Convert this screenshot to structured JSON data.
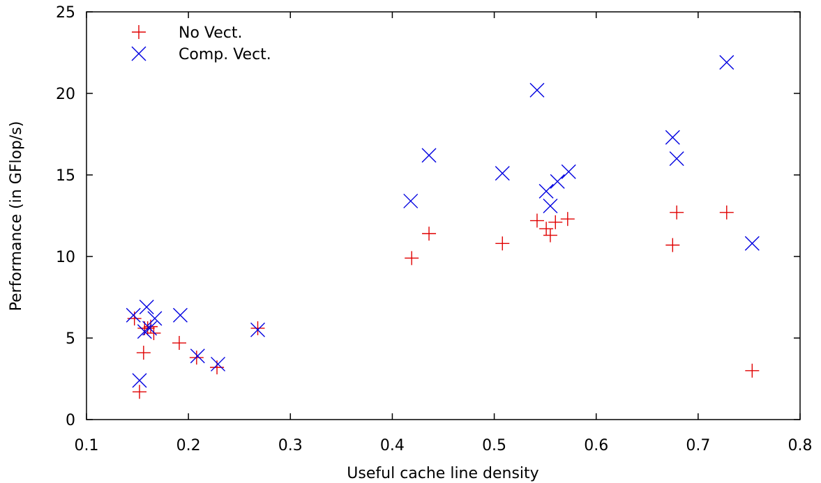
{
  "chart_data": {
    "type": "scatter",
    "title": "",
    "xlabel": "Useful cache line density",
    "ylabel": "Performance (in GFlop/s)",
    "xlim": [
      0.1,
      0.8
    ],
    "ylim": [
      0,
      25
    ],
    "xticks": [
      0.1,
      0.2,
      0.3,
      0.4,
      0.5,
      0.6,
      0.7,
      0.8
    ],
    "yticks": [
      0,
      5,
      10,
      15,
      20,
      25
    ],
    "xtick_labels": [
      "0.1",
      "0.2",
      "0.3",
      "0.4",
      "0.5",
      "0.6",
      "0.7",
      "0.8"
    ],
    "ytick_labels": [
      "0",
      "5",
      "10",
      "15",
      "20",
      "25"
    ],
    "grid": false,
    "legend_position": "top-left",
    "series": [
      {
        "name": "No Vect.",
        "marker": "plus",
        "color": "#e00000",
        "points": [
          {
            "x": 0.147,
            "y": 6.2
          },
          {
            "x": 0.152,
            "y": 1.7
          },
          {
            "x": 0.156,
            "y": 4.1
          },
          {
            "x": 0.157,
            "y": 5.6
          },
          {
            "x": 0.16,
            "y": 5.6
          },
          {
            "x": 0.163,
            "y": 5.7
          },
          {
            "x": 0.166,
            "y": 5.3
          },
          {
            "x": 0.191,
            "y": 4.7
          },
          {
            "x": 0.208,
            "y": 3.8
          },
          {
            "x": 0.228,
            "y": 3.2
          },
          {
            "x": 0.268,
            "y": 5.6
          },
          {
            "x": 0.419,
            "y": 9.9
          },
          {
            "x": 0.436,
            "y": 11.4
          },
          {
            "x": 0.508,
            "y": 10.8
          },
          {
            "x": 0.542,
            "y": 12.2
          },
          {
            "x": 0.551,
            "y": 11.7
          },
          {
            "x": 0.555,
            "y": 11.3
          },
          {
            "x": 0.56,
            "y": 12.1
          },
          {
            "x": 0.572,
            "y": 12.3
          },
          {
            "x": 0.675,
            "y": 10.7
          },
          {
            "x": 0.679,
            "y": 12.7
          },
          {
            "x": 0.728,
            "y": 12.7
          },
          {
            "x": 0.753,
            "y": 3.0
          }
        ]
      },
      {
        "name": "Comp. Vect.",
        "marker": "cross",
        "color": "#0000e0",
        "points": [
          {
            "x": 0.146,
            "y": 6.4
          },
          {
            "x": 0.152,
            "y": 2.4
          },
          {
            "x": 0.157,
            "y": 5.4
          },
          {
            "x": 0.159,
            "y": 6.9
          },
          {
            "x": 0.162,
            "y": 5.6
          },
          {
            "x": 0.167,
            "y": 6.2
          },
          {
            "x": 0.192,
            "y": 6.4
          },
          {
            "x": 0.209,
            "y": 3.9
          },
          {
            "x": 0.229,
            "y": 3.4
          },
          {
            "x": 0.268,
            "y": 5.5
          },
          {
            "x": 0.418,
            "y": 13.4
          },
          {
            "x": 0.436,
            "y": 16.2
          },
          {
            "x": 0.508,
            "y": 15.1
          },
          {
            "x": 0.542,
            "y": 20.2
          },
          {
            "x": 0.551,
            "y": 14.0
          },
          {
            "x": 0.555,
            "y": 13.1
          },
          {
            "x": 0.562,
            "y": 14.6
          },
          {
            "x": 0.573,
            "y": 15.2
          },
          {
            "x": 0.675,
            "y": 17.3
          },
          {
            "x": 0.679,
            "y": 16.0
          },
          {
            "x": 0.728,
            "y": 21.9
          },
          {
            "x": 0.753,
            "y": 10.8
          }
        ]
      }
    ]
  }
}
